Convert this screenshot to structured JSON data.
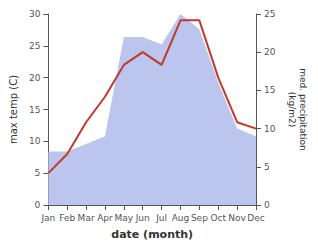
{
  "chart_data": {
    "type": "line",
    "xlabel": "date (month)",
    "ylabel": "max temp (C)",
    "y2label": "med. precipitation\n(kg/m2)",
    "categories": [
      "Jan",
      "Feb",
      "Mar",
      "Apr",
      "May",
      "Jun",
      "Jul",
      "Aug",
      "Sep",
      "Oct",
      "Nov",
      "Dec"
    ],
    "series": [
      {
        "type": "area",
        "axis": "y2",
        "color": "#bbc5ee",
        "values": [
          7,
          7,
          8,
          9,
          22,
          22,
          21,
          25,
          23,
          16,
          10,
          9
        ]
      },
      {
        "type": "line",
        "color": "#c0392b",
        "values": [
          5,
          8,
          13,
          17,
          22,
          24,
          22,
          29,
          29,
          20,
          13,
          12
        ]
      }
    ],
    "ylim": [
      0,
      30
    ],
    "yticks": [
      0,
      5,
      10,
      15,
      20,
      25,
      30
    ],
    "y2lim": [
      0,
      25
    ],
    "y2ticks": [
      0,
      5,
      10,
      15,
      20,
      25
    ],
    "grid": false
  }
}
